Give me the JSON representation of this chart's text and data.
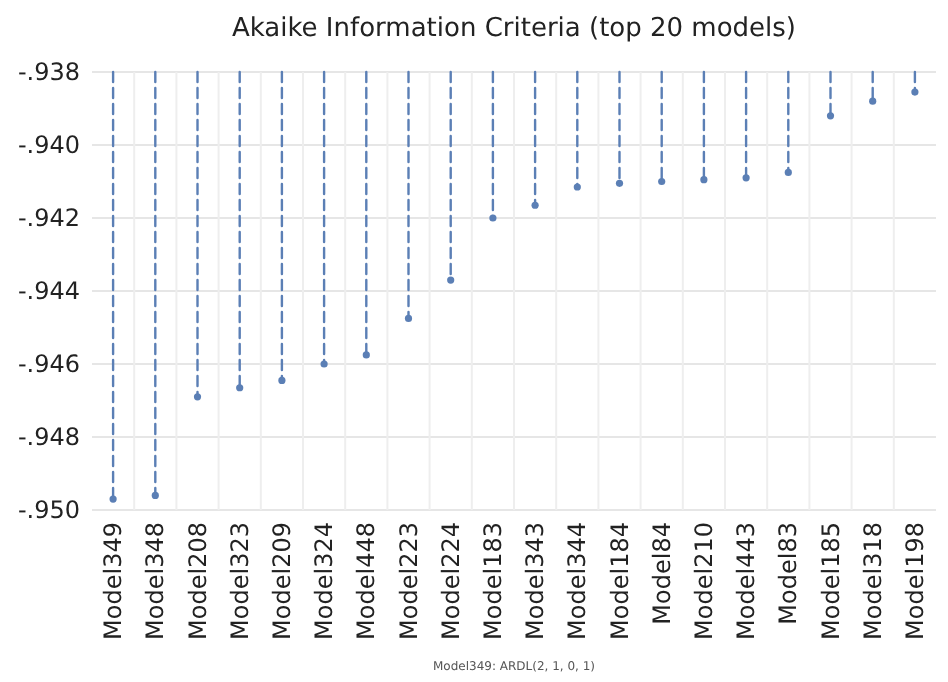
{
  "chart_data": {
    "type": "lollipop",
    "title": "Akaike Information Criteria (top 20 models)",
    "categories": [
      "Model349",
      "Model348",
      "Model208",
      "Model323",
      "Model209",
      "Model324",
      "Model448",
      "Model223",
      "Model224",
      "Model183",
      "Model343",
      "Model344",
      "Model184",
      "Model84",
      "Model210",
      "Model443",
      "Model83",
      "Model185",
      "Model318",
      "Model198"
    ],
    "values": [
      -0.9497,
      -0.9496,
      -0.9469,
      -0.94665,
      -0.94645,
      -0.946,
      -0.94575,
      -0.94475,
      -0.9437,
      -0.942,
      -0.94165,
      -0.94115,
      -0.94105,
      -0.941,
      -0.94095,
      -0.9409,
      -0.94075,
      -0.9392,
      -0.9388,
      -0.93855
    ],
    "color": "#5b7fb5",
    "ylim": [
      -0.95,
      -0.938
    ],
    "yticks": [
      {
        "value": -0.95,
        "label": "-.950"
      },
      {
        "value": -0.948,
        "label": "-.948"
      },
      {
        "value": -0.946,
        "label": "-.946"
      },
      {
        "value": -0.944,
        "label": "-.944"
      },
      {
        "value": -0.942,
        "label": "-.942"
      },
      {
        "value": -0.94,
        "label": "-.940"
      },
      {
        "value": -0.938,
        "label": "-.938"
      }
    ],
    "grid": true,
    "line_style": "dashed",
    "marker": "circle",
    "annotations": [
      "Model349: ARDL(2, 1, 0, 1)"
    ]
  }
}
